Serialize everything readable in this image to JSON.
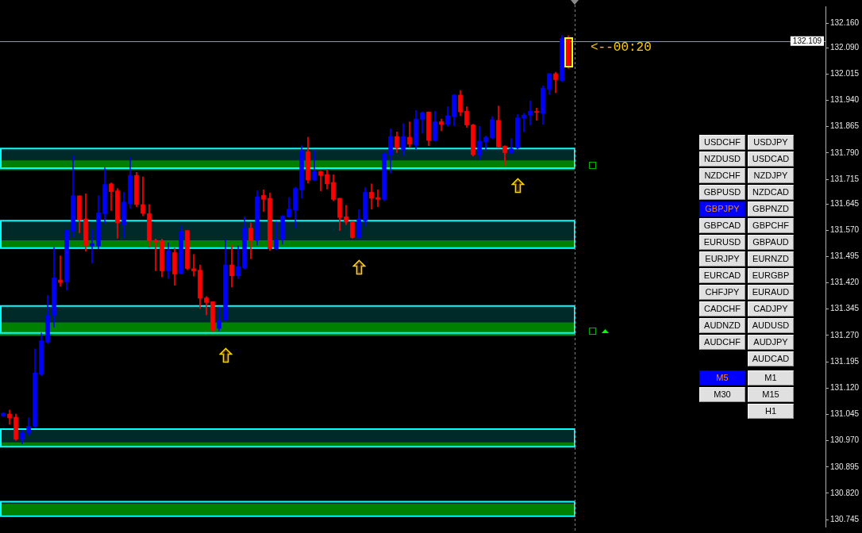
{
  "chart_data": [
    {
      "type": "candlestick",
      "tick_labels": "y",
      "categories": [
        null,
        null,
        null,
        null,
        null,
        null,
        null,
        null,
        null,
        null,
        null,
        null,
        null,
        null,
        null,
        null,
        null,
        null,
        null,
        null,
        null,
        null,
        null,
        null,
        null,
        null,
        null,
        null,
        null,
        null,
        null,
        null,
        null,
        null,
        null,
        null,
        null,
        null,
        null,
        null,
        null,
        null,
        null,
        null,
        null,
        null,
        null,
        null,
        null,
        null,
        null,
        null,
        null,
        null,
        null,
        null,
        null,
        null,
        null,
        null,
        null,
        null,
        null,
        null,
        null,
        null,
        null,
        null,
        null,
        null,
        null,
        null,
        null,
        null,
        null,
        null,
        null,
        null,
        null,
        null,
        null,
        null,
        null,
        null,
        null,
        null,
        null,
        null,
        null,
        null,
        null,
        null,
        null,
        null,
        null,
        null,
        null,
        null,
        null,
        null,
        null,
        null,
        null,
        null,
        null,
        null,
        null,
        null,
        null,
        null,
        null,
        null,
        null,
        null,
        null,
        null,
        null,
        null,
        null,
        null,
        null,
        null,
        null,
        null,
        null,
        null,
        null,
        null,
        null,
        null
      ],
      "ohlc": [
        [
          131.041,
          131.05,
          131.039,
          131.048
        ],
        [
          131.046,
          131.057,
          131.017,
          131.035
        ],
        [
          131.037,
          131.046,
          130.971,
          130.974
        ],
        [
          130.974,
          131.0,
          130.961,
          130.993
        ],
        [
          130.992,
          131.035,
          130.985,
          131.011
        ],
        [
          131.011,
          131.232,
          131.008,
          131.163
        ],
        [
          131.159,
          131.277,
          131.155,
          131.255
        ],
        [
          131.251,
          131.384,
          131.247,
          131.327
        ],
        [
          131.328,
          131.521,
          131.294,
          131.434
        ],
        [
          131.428,
          131.497,
          131.41,
          131.421
        ],
        [
          131.423,
          131.572,
          131.399,
          131.572
        ],
        [
          131.567,
          131.783,
          131.552,
          131.668
        ],
        [
          131.668,
          131.668,
          131.562,
          131.6
        ],
        [
          131.602,
          131.674,
          131.51,
          131.528
        ],
        [
          131.525,
          131.572,
          131.476,
          131.532
        ],
        [
          131.525,
          131.668,
          131.517,
          131.619
        ],
        [
          131.617,
          131.748,
          131.59,
          131.7
        ],
        [
          131.702,
          131.705,
          131.626,
          131.68
        ],
        [
          131.682,
          131.689,
          131.547,
          131.591
        ],
        [
          131.586,
          131.678,
          131.549,
          131.65
        ],
        [
          131.646,
          131.777,
          131.633,
          131.726
        ],
        [
          131.726,
          131.735,
          131.637,
          131.643
        ],
        [
          131.643,
          131.722,
          131.611,
          131.618
        ],
        [
          131.617,
          131.643,
          131.521,
          131.539
        ],
        [
          131.541,
          131.545,
          131.454,
          131.537
        ],
        [
          131.538,
          131.545,
          131.437,
          131.454
        ],
        [
          131.454,
          131.534,
          131.432,
          131.512
        ],
        [
          131.506,
          131.519,
          131.413,
          131.445
        ],
        [
          131.447,
          131.582,
          131.447,
          131.567
        ],
        [
          131.569,
          131.569,
          131.457,
          131.461
        ],
        [
          131.46,
          131.501,
          131.439,
          131.454
        ],
        [
          131.456,
          131.471,
          131.347,
          131.376
        ],
        [
          131.377,
          131.381,
          131.328,
          131.364
        ],
        [
          131.366,
          131.366,
          131.281,
          131.285
        ],
        [
          131.29,
          131.351,
          131.283,
          131.314
        ],
        [
          131.314,
          131.543,
          131.312,
          131.471
        ],
        [
          131.471,
          131.528,
          131.408,
          131.44
        ],
        [
          131.44,
          131.525,
          131.432,
          131.466
        ],
        [
          131.462,
          131.608,
          131.46,
          131.576
        ],
        [
          131.576,
          131.591,
          131.488,
          131.541
        ],
        [
          131.541,
          131.682,
          131.528,
          131.665
        ],
        [
          131.669,
          131.685,
          131.623,
          131.658
        ],
        [
          131.661,
          131.676,
          131.512,
          131.517
        ],
        [
          131.517,
          131.595,
          131.515,
          131.543
        ],
        [
          131.545,
          131.612,
          131.53,
          131.61
        ],
        [
          131.608,
          131.663,
          131.606,
          131.63
        ],
        [
          131.628,
          131.693,
          131.576,
          131.689
        ],
        [
          131.685,
          131.811,
          131.661,
          131.798
        ],
        [
          131.794,
          131.835,
          131.704,
          131.713
        ],
        [
          131.713,
          131.798,
          131.711,
          131.737
        ],
        [
          131.737,
          131.739,
          131.682,
          131.726
        ],
        [
          131.728,
          131.743,
          131.687,
          131.702
        ],
        [
          131.706,
          131.728,
          131.654,
          131.658
        ],
        [
          131.661,
          131.661,
          131.569,
          131.606
        ],
        [
          131.608,
          131.641,
          131.586,
          131.593
        ],
        [
          131.595,
          131.595,
          131.547,
          131.549
        ],
        [
          131.549,
          131.628,
          131.547,
          131.602
        ],
        [
          131.597,
          131.691,
          131.582,
          131.678
        ],
        [
          131.678,
          131.702,
          131.63,
          131.661
        ],
        [
          131.663,
          131.685,
          131.637,
          131.658
        ],
        [
          131.658,
          131.791,
          131.654,
          131.787
        ],
        [
          131.785,
          131.859,
          131.733,
          131.837
        ],
        [
          131.837,
          131.85,
          131.791,
          131.805
        ],
        [
          131.8,
          131.874,
          131.783,
          131.837
        ],
        [
          131.835,
          131.879,
          131.805,
          131.815
        ],
        [
          131.813,
          131.911,
          131.802,
          131.887
        ],
        [
          131.886,
          131.907,
          131.846,
          131.905
        ],
        [
          131.907,
          131.907,
          131.811,
          131.826
        ],
        [
          131.826,
          131.909,
          131.824,
          131.879
        ],
        [
          131.879,
          131.887,
          131.853,
          131.872
        ],
        [
          131.872,
          131.922,
          131.866,
          131.896
        ],
        [
          131.894,
          131.957,
          131.868,
          131.955
        ],
        [
          131.955,
          131.968,
          131.896,
          131.907
        ],
        [
          131.909,
          131.922,
          131.863,
          131.87
        ],
        [
          131.87,
          131.872,
          131.781,
          131.785
        ],
        [
          131.785,
          131.866,
          131.772,
          131.824
        ],
        [
          131.822,
          131.839,
          131.798,
          131.835
        ],
        [
          131.833,
          131.894,
          131.831,
          131.885
        ],
        [
          131.883,
          131.924,
          131.805,
          131.807
        ],
        [
          131.809,
          131.811,
          131.755,
          131.791
        ],
        [
          131.791,
          131.831,
          131.789,
          131.802
        ],
        [
          131.805,
          131.9,
          131.802,
          131.89
        ],
        [
          131.89,
          131.903,
          131.85,
          131.898
        ],
        [
          131.898,
          131.938,
          131.87,
          131.909
        ],
        [
          131.908,
          131.918,
          131.883,
          131.906
        ],
        [
          131.903,
          131.981,
          131.872,
          131.975
        ],
        [
          131.972,
          132.016,
          131.957,
          132.016
        ],
        [
          132.016,
          132.02,
          131.962,
          131.999
        ],
        [
          131.996,
          132.125,
          131.994,
          132.116
        ],
        [
          132.116,
          132.125,
          132.031,
          132.04
        ],
        null,
        null,
        null,
        null,
        null,
        null,
        null,
        null,
        null,
        null,
        null,
        null,
        null,
        null,
        null,
        null,
        null,
        null,
        null,
        null,
        null,
        null,
        null,
        null,
        null,
        null,
        null,
        null,
        null,
        null,
        null,
        null,
        null,
        null,
        null,
        null,
        null,
        null,
        null,
        null
      ],
      "colors": [
        "#0000ff",
        "#ff0000",
        "#ff0000",
        "#0000ff",
        "#0000ff",
        "#0000ff",
        "#0000ff",
        "#0000ff",
        "#0000ff",
        "#ff0000",
        "#0000ff",
        "#0000ff",
        "#ff0000",
        "#ff0000",
        "#0000ff",
        "#0000ff",
        "#0000ff",
        "#ff0000",
        "#ff0000",
        "#0000ff",
        "#0000ff",
        "#ff0000",
        "#ff0000",
        "#ff0000",
        "#ff0000",
        "#ff0000",
        "#0000ff",
        "#ff0000",
        "#0000ff",
        "#ff0000",
        "#ff0000",
        "#ff0000",
        "#ff0000",
        "#ff0000",
        "#0000ff",
        "#0000ff",
        "#ff0000",
        "#0000ff",
        "#0000ff",
        "#ff0000",
        "#0000ff",
        "#ff0000",
        "#ff0000",
        "#0000ff",
        "#0000ff",
        "#0000ff",
        "#0000ff",
        "#0000ff",
        "#ff0000",
        "#0000ff",
        "#ff0000",
        "#ff0000",
        "#ff0000",
        "#ff0000",
        "#ff0000",
        "#ff0000",
        "#0000ff",
        "#0000ff",
        "#ff0000",
        "#ff0000",
        "#0000ff",
        "#0000ff",
        "#ff0000",
        "#0000ff",
        "#ff0000",
        "#0000ff",
        "#0000ff",
        "#ff0000",
        "#0000ff",
        "#ff0000",
        "#0000ff",
        "#0000ff",
        "#ff0000",
        "#ff0000",
        "#ff0000",
        "#0000ff",
        "#0000ff",
        "#0000ff",
        "#ff0000",
        "#ff0000",
        "#0000ff",
        "#0000ff",
        "#0000ff",
        "#0000ff",
        "#ff0000",
        "#0000ff",
        "#0000ff",
        "#ff0000",
        "#0000ff",
        "#ff0000",
        null,
        null,
        null,
        null,
        null,
        null,
        null,
        null,
        null,
        null,
        null,
        null,
        null,
        null,
        null,
        null,
        null,
        null,
        null,
        null,
        null,
        null,
        null,
        null,
        null,
        null,
        null,
        null,
        null,
        null,
        null,
        null,
        null,
        null,
        null,
        null,
        null,
        null,
        null,
        null
      ],
      "ylim": [
        130.725,
        132.208
      ],
      "yticks": [
        {
          "value": 132.16,
          "label": "132.160"
        },
        {
          "value": 132.09,
          "label": "132.090"
        },
        132.015,
        {
          "value": 131.94,
          "label": "131.940"
        },
        131.865,
        {
          "value": 131.79,
          "label": "131.790"
        },
        131.715,
        131.645,
        {
          "value": 131.57,
          "label": "131.570"
        },
        131.495,
        {
          "value": 131.42,
          "label": "131.420"
        },
        131.345,
        {
          "value": 131.27,
          "label": "131.270"
        },
        131.195,
        {
          "value": 131.12,
          "label": "131.120"
        },
        131.045,
        {
          "value": 130.97,
          "label": "130.970"
        },
        130.895,
        {
          "value": 130.82,
          "label": "130.820"
        },
        130.745
      ],
      "ref_lines": [
        {
          "axis": "y",
          "value": 132.109,
          "label": "132.109",
          "color": "#8899aa"
        }
      ],
      "bands": [
        {
          "axis": "y",
          "from": 130.758,
          "to": 130.79,
          "color": "#008000"
        },
        {
          "axis": "y",
          "from": 130.755,
          "to": 130.796,
          "color": "#00ffff"
        },
        {
          "axis": "y",
          "from": 130.951,
          "to": 130.965,
          "color": "#008000"
        },
        {
          "axis": "y",
          "from": 130.953,
          "to": 131.003,
          "color": "#00ffff"
        },
        {
          "axis": "y",
          "from": 131.269,
          "to": 131.307,
          "color": "#008000"
        },
        {
          "axis": "y",
          "from": 131.277,
          "to": 131.354,
          "color": "#00ffff"
        },
        {
          "axis": "y",
          "from": 131.517,
          "to": 131.541,
          "color": "#008000"
        },
        {
          "axis": "y",
          "from": 131.519,
          "to": 131.597,
          "color": "#00ffff"
        },
        {
          "axis": "y",
          "from": 131.741,
          "to": 131.769,
          "color": "#008000"
        },
        {
          "axis": "y",
          "from": 131.747,
          "to": 131.803,
          "color": "#00ffff"
        }
      ],
      "annotations": [
        "<--00:20"
      ]
    },
    {
      "type": "other",
      "annotations": [
        "USDCHF",
        "USDJPY",
        "NZDUSD",
        "USDCAD",
        "NZDCHF",
        "NZDJPY",
        "GBPUSD",
        "NZDCAD",
        "GBPJPY",
        "GBPNZD",
        "GBPCAD",
        "GBPCHF",
        "EURUSD",
        "GBPAUD",
        "EURJPY",
        "EURNZD",
        "EURCAD",
        "EURGBP",
        "CHFJPY",
        "EURAUD",
        "CADCHF",
        "CADJPY",
        "AUDNZD",
        "AUDUSD",
        "AUDCHF",
        "AUDJPY",
        "AUDCAD"
      ],
      "colors": [
        "#e0e0e0",
        "#e0e0e0",
        "#e0e0e0",
        "#e0e0e0",
        "#e0e0e0",
        "#e0e0e0",
        "#e0e0e0",
        "#e0e0e0",
        "#0000ff",
        "#e0e0e0",
        "#e0e0e0",
        "#e0e0e0",
        "#e0e0e0",
        "#e0e0e0",
        "#e0e0e0",
        "#e0e0e0",
        "#e0e0e0",
        "#e0e0e0",
        "#e0e0e0",
        "#e0e0e0",
        "#e0e0e0",
        "#e0e0e0",
        "#e0e0e0",
        "#e0e0e0",
        "#e0e0e0",
        "#e0e0e0",
        "#e0e0e0"
      ]
    },
    {
      "type": "other",
      "annotations": [
        "M5",
        "M1",
        "M30",
        "M15",
        "H1"
      ],
      "colors": [
        "#0000ff",
        "#e0e0e0",
        "#e0e0e0",
        "#e0e0e0",
        "#e0e0e0"
      ]
    }
  ]
}
